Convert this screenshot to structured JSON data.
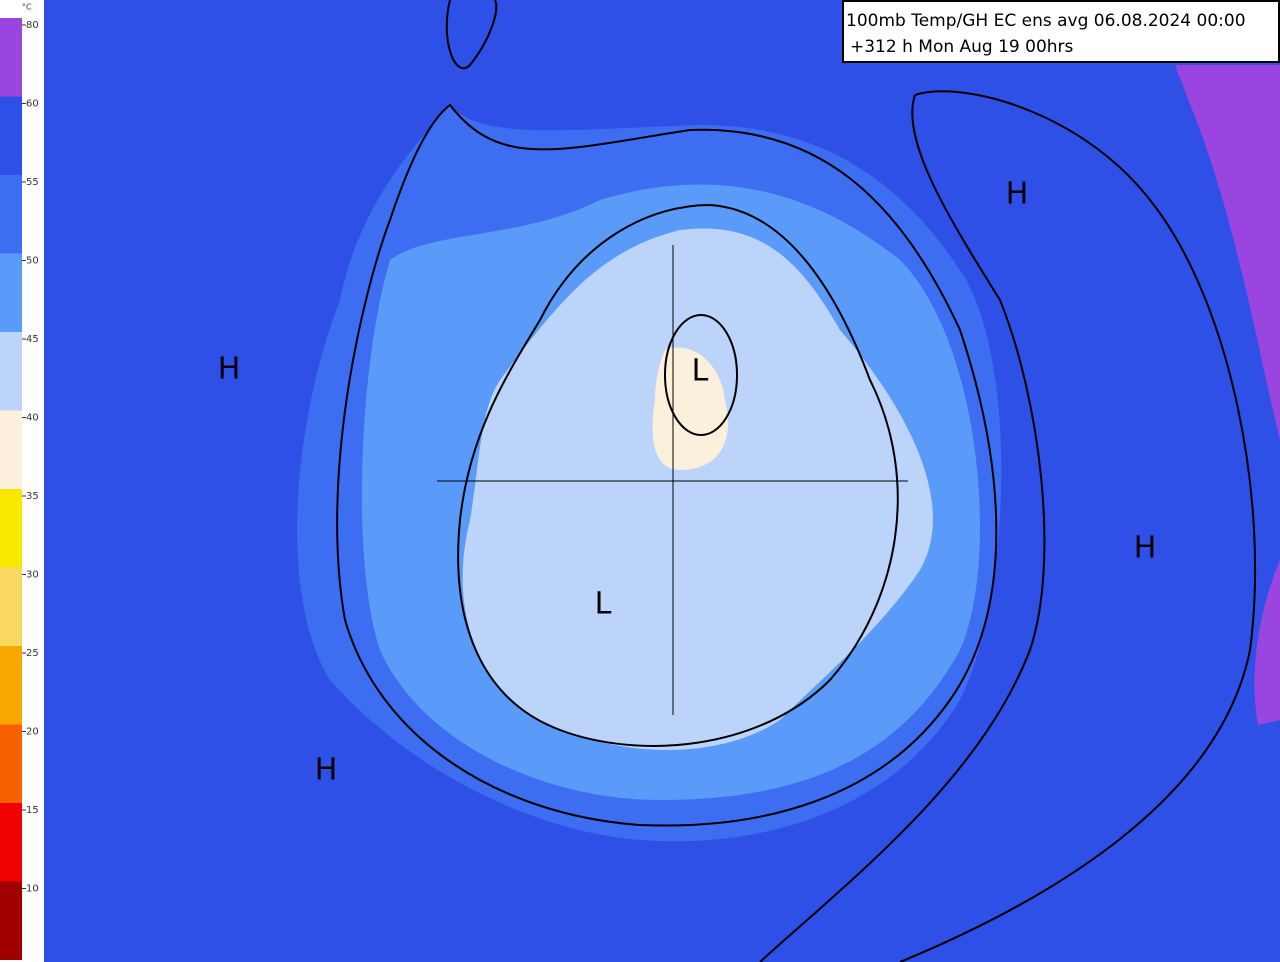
{
  "header": {
    "title": "100mb Temp/GH  EC ens avg 06.08.2024 00:00",
    "subtitle": "+312 h Mon Aug 19 00hrs"
  },
  "legend": {
    "unit": "°C",
    "items": [
      {
        "label": "80",
        "color": "#9b45e0"
      },
      {
        "label": "60",
        "color": "#2f50e6"
      },
      {
        "label": "55",
        "color": "#3d6ef2"
      },
      {
        "label": "50",
        "color": "#5a9af8"
      },
      {
        "label": "45",
        "color": "#bcd3fa"
      },
      {
        "label": "40",
        "color": "#fbf0dc"
      },
      {
        "label": "35",
        "color": "#f8e800"
      },
      {
        "label": "30",
        "color": "#f8d860"
      },
      {
        "label": "25",
        "color": "#f8a800"
      },
      {
        "label": "20",
        "color": "#f86000"
      },
      {
        "label": "15",
        "color": "#f00000"
      },
      {
        "label": "10",
        "color": "#a00000"
      }
    ]
  },
  "markers": [
    {
      "label": "H"
    },
    {
      "label": "H"
    },
    {
      "label": "H"
    },
    {
      "label": "H"
    },
    {
      "label": "L"
    },
    {
      "label": "L"
    }
  ]
}
